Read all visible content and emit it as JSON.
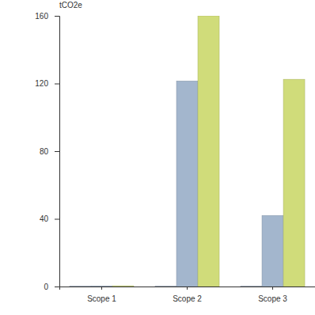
{
  "chart_data": {
    "type": "bar",
    "y_label": "tCO2e",
    "categories": [
      "Scope 1",
      "Scope 2",
      "Scope 3"
    ],
    "series": [
      {
        "color": "#b9c6d8",
        "values": [
          0.3,
          0.3,
          0.3
        ]
      },
      {
        "color": "#a3b6cd",
        "values": [
          0.3,
          121.5,
          42
        ]
      },
      {
        "color": "#d0dc7a",
        "values": [
          0.4,
          160,
          122.5
        ]
      }
    ],
    "ylim": [
      0,
      160
    ],
    "yticks": [
      0,
      40,
      80,
      120,
      160
    ],
    "grid": false
  }
}
